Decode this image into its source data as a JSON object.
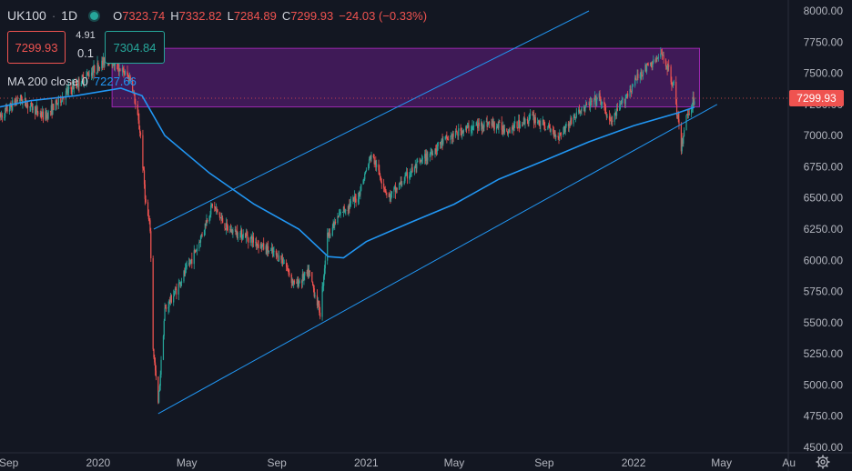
{
  "header": {
    "symbol": "UK100",
    "separator": "·",
    "timeframe": "1D",
    "open_label": "O",
    "open": "7323.74",
    "high_label": "H",
    "high": "7332.82",
    "low_label": "L",
    "low": "7284.89",
    "close_label": "C",
    "close": "7299.93",
    "change": "−24.03 (−0.33%)"
  },
  "trade": {
    "sell_price": "7299.93",
    "buy_price": "7304.84",
    "spread_top": "4.91",
    "spread_bottom": "0.1"
  },
  "indicator": {
    "name": "MA 200 close 0",
    "value": "7227.66",
    "color": "#2196f3"
  },
  "last_price_tag": "7299.93",
  "colors": {
    "background": "#131722",
    "up": "#26a69a",
    "down": "#ef5350",
    "ma": "#2196f3",
    "channel": "#2196f3",
    "zone_fill": "#7b1fa2",
    "zone_border": "#9c27b0"
  },
  "icons": {
    "settings": "gear-icon",
    "status": "market-status-dot-icon"
  },
  "chart_data": {
    "type": "candlestick",
    "instrument": "UK100",
    "interval": "1D",
    "y_axis": {
      "ylim": [
        4500,
        8000
      ],
      "ticks": [
        "8000.00",
        "7750.00",
        "7500.00",
        "7250.00",
        "7000.00",
        "6750.00",
        "6500.00",
        "6250.00",
        "6000.00",
        "5750.00",
        "5500.00",
        "5250.00",
        "5000.00",
        "4750.00",
        "4500.00"
      ]
    },
    "x_axis": {
      "ticks": [
        "Sep",
        "2020",
        "May",
        "Sep",
        "2021",
        "May",
        "Sep",
        "2022",
        "May",
        "Au"
      ],
      "tick_dates": [
        "2019-09-01",
        "2020-01-01",
        "2020-05-01",
        "2020-09-01",
        "2021-01-01",
        "2021-05-01",
        "2021-09-01",
        "2022-01-01",
        "2022-05-01",
        "2022-08-01"
      ]
    },
    "price_path": [
      [
        "2019-08-20",
        7150
      ],
      [
        "2019-09-15",
        7300
      ],
      [
        "2019-10-20",
        7150
      ],
      [
        "2019-11-20",
        7350
      ],
      [
        "2019-12-20",
        7500
      ],
      [
        "2020-01-15",
        7620
      ],
      [
        "2020-02-15",
        7450
      ],
      [
        "2020-02-28",
        7000
      ],
      [
        "2020-03-06",
        6450
      ],
      [
        "2020-03-12",
        6250
      ],
      [
        "2020-03-16",
        5300
      ],
      [
        "2020-03-23",
        4850
      ],
      [
        "2020-04-01",
        5600
      ],
      [
        "2020-04-20",
        5800
      ],
      [
        "2020-05-15",
        6100
      ],
      [
        "2020-06-05",
        6450
      ],
      [
        "2020-06-25",
        6250
      ],
      [
        "2020-07-20",
        6200
      ],
      [
        "2020-08-15",
        6100
      ],
      [
        "2020-09-10",
        6000
      ],
      [
        "2020-09-25",
        5800
      ],
      [
        "2020-10-15",
        5900
      ],
      [
        "2020-10-30",
        5580
      ],
      [
        "2020-11-09",
        6200
      ],
      [
        "2020-11-30",
        6400
      ],
      [
        "2020-12-20",
        6500
      ],
      [
        "2021-01-08",
        6850
      ],
      [
        "2021-02-01",
        6500
      ],
      [
        "2021-03-01",
        6700
      ],
      [
        "2021-04-15",
        6950
      ],
      [
        "2021-05-15",
        7050
      ],
      [
        "2021-06-15",
        7100
      ],
      [
        "2021-07-15",
        7050
      ],
      [
        "2021-08-15",
        7150
      ],
      [
        "2021-09-20",
        7000
      ],
      [
        "2021-10-20",
        7200
      ],
      [
        "2021-11-15",
        7300
      ],
      [
        "2021-12-01",
        7100
      ],
      [
        "2021-12-20",
        7300
      ],
      [
        "2022-01-10",
        7500
      ],
      [
        "2022-02-10",
        7650
      ],
      [
        "2022-02-25",
        7400
      ],
      [
        "2022-03-07",
        6900
      ],
      [
        "2022-03-14",
        7150
      ],
      [
        "2022-03-25",
        7299.93
      ]
    ],
    "ma200_path": [
      [
        "2019-08-20",
        7230
      ],
      [
        "2019-10-01",
        7280
      ],
      [
        "2019-12-01",
        7320
      ],
      [
        "2020-02-01",
        7380
      ],
      [
        "2020-03-01",
        7320
      ],
      [
        "2020-04-01",
        7000
      ],
      [
        "2020-06-01",
        6700
      ],
      [
        "2020-08-01",
        6450
      ],
      [
        "2020-10-01",
        6250
      ],
      [
        "2020-11-10",
        6030
      ],
      [
        "2020-12-01",
        6020
      ],
      [
        "2021-01-01",
        6150
      ],
      [
        "2021-03-01",
        6300
      ],
      [
        "2021-05-01",
        6450
      ],
      [
        "2021-07-01",
        6650
      ],
      [
        "2021-09-01",
        6800
      ],
      [
        "2021-11-01",
        6950
      ],
      [
        "2022-01-01",
        7080
      ],
      [
        "2022-03-01",
        7180
      ],
      [
        "2022-03-25",
        7227.66
      ]
    ],
    "channel_lines": [
      {
        "from": [
          "2020-03-17",
          6250
        ],
        "to": [
          "2021-11-01",
          8000
        ]
      },
      {
        "from": [
          "2020-03-23",
          4770
        ],
        "to": [
          "2022-04-25",
          7250
        ]
      }
    ],
    "zone": {
      "x_start": "2020-01-20",
      "x_end": "2022-04-01",
      "y_bottom": 7230,
      "y_top": 7700
    },
    "last_price": 7299.93,
    "grid": false
  }
}
